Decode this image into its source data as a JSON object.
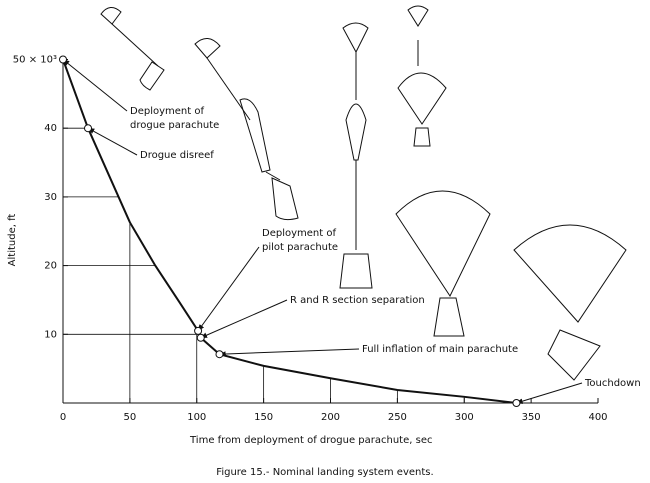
{
  "chart_data": {
    "type": "line",
    "caption": "Figure 15.- Nominal landing system events.",
    "x_label": "Time from deployment of drogue parachute, sec",
    "y_label": "Altitude, ft",
    "xlim": [
      0,
      400
    ],
    "xticks": [
      0,
      50,
      100,
      150,
      200,
      250,
      300,
      350,
      400
    ],
    "ylim": [
      0,
      50
    ],
    "yticks": [
      10,
      20,
      30,
      40,
      {
        "value": 50,
        "label": "50 × 10³"
      }
    ],
    "drop_lines": true,
    "series": [
      {
        "color": "#111111",
        "x": [
          0,
          18.7,
          50,
          69,
          87,
          101,
          103,
          117,
          150,
          200,
          250,
          300,
          339
        ],
        "values": [
          50,
          40,
          26.3,
          20,
          14.7,
          10.5,
          9.5,
          7.1,
          5.4,
          3.6,
          1.9,
          0.9,
          0
        ]
      }
    ],
    "events": [
      {
        "lines": [
          "Deployment of",
          "drogue parachute"
        ],
        "x": 0,
        "y": 50
      },
      {
        "lines": [
          "Drogue disreef"
        ],
        "x": 18.7,
        "y": 40
      },
      {
        "lines": [
          "Deployment of",
          "pilot parachute"
        ],
        "x": 101,
        "y": 10.5
      },
      {
        "lines": [
          "R and R section separation"
        ],
        "x": 103,
        "y": 9.5
      },
      {
        "lines": [
          "Full inflation of main parachute"
        ],
        "x": 117,
        "y": 7.1
      },
      {
        "lines": [
          "Touchdown"
        ],
        "x": 339,
        "y": 0
      }
    ]
  }
}
